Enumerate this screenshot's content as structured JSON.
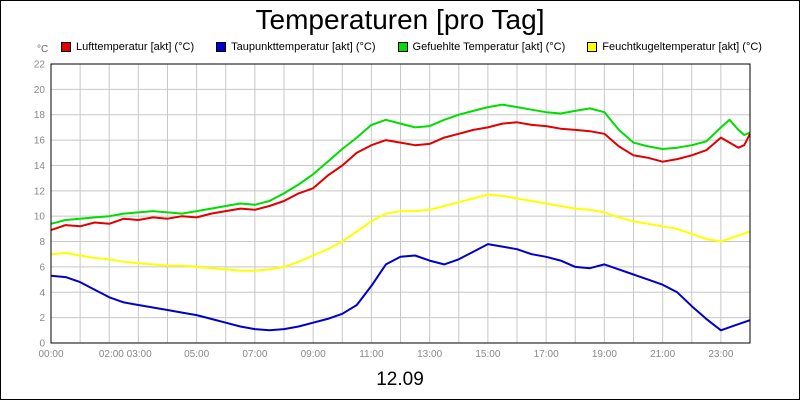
{
  "title": "Temperaturen [pro Tag]",
  "date_label": "12.09",
  "unit": "°C",
  "chart_data": {
    "type": "line",
    "title": "Temperaturen [pro Tag]",
    "xlabel": "12.09",
    "ylabel": "°C",
    "xlim": [
      0,
      24
    ],
    "ylim": [
      0,
      22
    ],
    "grid": true,
    "legend_position": "top",
    "x_tick_labels": [
      "00:00",
      "02:00 03:00",
      "05:00",
      "07:00",
      "09:00",
      "11:00",
      "13:00",
      "15:00",
      "17:00",
      "19:00",
      "21:00",
      "23:00"
    ],
    "x_tick_values": [
      0,
      2.55,
      5,
      7,
      9,
      11,
      13,
      15,
      17,
      19,
      21,
      23
    ],
    "y_tick_labels": [
      "0",
      "2",
      "4",
      "6",
      "8",
      "10",
      "12",
      "14",
      "16",
      "18",
      "20",
      "22"
    ],
    "y_tick_values": [
      0,
      2,
      4,
      6,
      8,
      10,
      12,
      14,
      16,
      18,
      20,
      22
    ],
    "series": [
      {
        "name": "Lufttemperatur [akt] (°C)",
        "color": "#e00000",
        "points": [
          [
            0,
            8.9
          ],
          [
            0.5,
            9.3
          ],
          [
            1,
            9.2
          ],
          [
            1.5,
            9.5
          ],
          [
            2,
            9.4
          ],
          [
            2.5,
            9.8
          ],
          [
            3,
            9.7
          ],
          [
            3.5,
            9.9
          ],
          [
            4,
            9.8
          ],
          [
            4.5,
            10.0
          ],
          [
            5,
            9.9
          ],
          [
            5.5,
            10.2
          ],
          [
            6,
            10.4
          ],
          [
            6.5,
            10.6
          ],
          [
            7,
            10.5
          ],
          [
            7.5,
            10.8
          ],
          [
            8,
            11.2
          ],
          [
            8.5,
            11.8
          ],
          [
            9,
            12.2
          ],
          [
            9.5,
            13.2
          ],
          [
            10,
            14.0
          ],
          [
            10.5,
            15.0
          ],
          [
            11,
            15.6
          ],
          [
            11.5,
            16.0
          ],
          [
            12,
            15.8
          ],
          [
            12.5,
            15.6
          ],
          [
            13,
            15.7
          ],
          [
            13.5,
            16.2
          ],
          [
            14,
            16.5
          ],
          [
            14.5,
            16.8
          ],
          [
            15,
            17.0
          ],
          [
            15.5,
            17.3
          ],
          [
            16,
            17.4
          ],
          [
            16.5,
            17.2
          ],
          [
            17,
            17.1
          ],
          [
            17.5,
            16.9
          ],
          [
            18,
            16.8
          ],
          [
            18.5,
            16.7
          ],
          [
            19,
            16.5
          ],
          [
            19.5,
            15.5
          ],
          [
            20,
            14.8
          ],
          [
            20.5,
            14.6
          ],
          [
            21,
            14.3
          ],
          [
            21.5,
            14.5
          ],
          [
            22,
            14.8
          ],
          [
            22.5,
            15.2
          ],
          [
            23,
            16.2
          ],
          [
            23.3,
            15.8
          ],
          [
            23.6,
            15.4
          ],
          [
            23.8,
            15.6
          ],
          [
            24,
            16.5
          ]
        ]
      },
      {
        "name": "Taupunkttemperatur [akt] (°C)",
        "color": "#0000cc",
        "points": [
          [
            0,
            5.3
          ],
          [
            0.5,
            5.2
          ],
          [
            1,
            4.8
          ],
          [
            1.5,
            4.2
          ],
          [
            2,
            3.6
          ],
          [
            2.5,
            3.2
          ],
          [
            3,
            3.0
          ],
          [
            3.5,
            2.8
          ],
          [
            4,
            2.6
          ],
          [
            4.5,
            2.4
          ],
          [
            5,
            2.2
          ],
          [
            5.5,
            1.9
          ],
          [
            6,
            1.6
          ],
          [
            6.5,
            1.3
          ],
          [
            7,
            1.1
          ],
          [
            7.5,
            1.0
          ],
          [
            8,
            1.1
          ],
          [
            8.5,
            1.3
          ],
          [
            9,
            1.6
          ],
          [
            9.5,
            1.9
          ],
          [
            10,
            2.3
          ],
          [
            10.5,
            3.0
          ],
          [
            11,
            4.5
          ],
          [
            11.5,
            6.2
          ],
          [
            12,
            6.8
          ],
          [
            12.5,
            6.9
          ],
          [
            13,
            6.5
          ],
          [
            13.5,
            6.2
          ],
          [
            14,
            6.6
          ],
          [
            14.5,
            7.2
          ],
          [
            15,
            7.8
          ],
          [
            15.5,
            7.6
          ],
          [
            16,
            7.4
          ],
          [
            16.5,
            7.0
          ],
          [
            17,
            6.8
          ],
          [
            17.5,
            6.5
          ],
          [
            18,
            6.0
          ],
          [
            18.5,
            5.9
          ],
          [
            19,
            6.2
          ],
          [
            19.5,
            5.8
          ],
          [
            20,
            5.4
          ],
          [
            20.5,
            5.0
          ],
          [
            21,
            4.6
          ],
          [
            21.5,
            4.0
          ],
          [
            22,
            2.9
          ],
          [
            22.5,
            1.9
          ],
          [
            23,
            1.0
          ],
          [
            23.5,
            1.4
          ],
          [
            24,
            1.8
          ]
        ]
      },
      {
        "name": "Gefuehlte Temperatur [akt] (°C)",
        "color": "#00dd00",
        "points": [
          [
            0,
            9.4
          ],
          [
            0.5,
            9.7
          ],
          [
            1,
            9.8
          ],
          [
            1.5,
            9.9
          ],
          [
            2,
            10.0
          ],
          [
            2.5,
            10.2
          ],
          [
            3,
            10.3
          ],
          [
            3.5,
            10.4
          ],
          [
            4,
            10.3
          ],
          [
            4.5,
            10.2
          ],
          [
            5,
            10.4
          ],
          [
            5.5,
            10.6
          ],
          [
            6,
            10.8
          ],
          [
            6.5,
            11.0
          ],
          [
            7,
            10.9
          ],
          [
            7.5,
            11.2
          ],
          [
            8,
            11.8
          ],
          [
            8.5,
            12.5
          ],
          [
            9,
            13.3
          ],
          [
            9.5,
            14.3
          ],
          [
            10,
            15.3
          ],
          [
            10.5,
            16.2
          ],
          [
            11,
            17.2
          ],
          [
            11.5,
            17.6
          ],
          [
            12,
            17.3
          ],
          [
            12.5,
            17.0
          ],
          [
            13,
            17.1
          ],
          [
            13.5,
            17.6
          ],
          [
            14,
            18.0
          ],
          [
            14.5,
            18.3
          ],
          [
            15,
            18.6
          ],
          [
            15.5,
            18.8
          ],
          [
            16,
            18.6
          ],
          [
            16.5,
            18.4
          ],
          [
            17,
            18.2
          ],
          [
            17.5,
            18.1
          ],
          [
            18,
            18.3
          ],
          [
            18.5,
            18.5
          ],
          [
            19,
            18.2
          ],
          [
            19.5,
            16.8
          ],
          [
            20,
            15.8
          ],
          [
            20.5,
            15.5
          ],
          [
            21,
            15.3
          ],
          [
            21.5,
            15.4
          ],
          [
            22,
            15.6
          ],
          [
            22.5,
            15.9
          ],
          [
            23,
            17.0
          ],
          [
            23.3,
            17.6
          ],
          [
            23.6,
            16.8
          ],
          [
            23.8,
            16.4
          ],
          [
            24,
            16.6
          ]
        ]
      },
      {
        "name": "Feuchtkugeltemperatur [akt] (°C)",
        "color": "#ffff00",
        "points": [
          [
            0,
            7.0
          ],
          [
            0.5,
            7.1
          ],
          [
            1,
            6.9
          ],
          [
            1.5,
            6.7
          ],
          [
            2,
            6.6
          ],
          [
            2.5,
            6.4
          ],
          [
            3,
            6.3
          ],
          [
            3.5,
            6.2
          ],
          [
            4,
            6.1
          ],
          [
            4.5,
            6.1
          ],
          [
            5,
            6.0
          ],
          [
            5.5,
            5.9
          ],
          [
            6,
            5.8
          ],
          [
            6.5,
            5.7
          ],
          [
            7,
            5.7
          ],
          [
            7.5,
            5.8
          ],
          [
            8,
            6.0
          ],
          [
            8.5,
            6.4
          ],
          [
            9,
            6.9
          ],
          [
            9.5,
            7.4
          ],
          [
            10,
            8.0
          ],
          [
            10.5,
            8.8
          ],
          [
            11,
            9.6
          ],
          [
            11.5,
            10.2
          ],
          [
            12,
            10.4
          ],
          [
            12.5,
            10.4
          ],
          [
            13,
            10.5
          ],
          [
            13.5,
            10.8
          ],
          [
            14,
            11.1
          ],
          [
            14.5,
            11.4
          ],
          [
            15,
            11.7
          ],
          [
            15.5,
            11.6
          ],
          [
            16,
            11.4
          ],
          [
            16.5,
            11.2
          ],
          [
            17,
            11.0
          ],
          [
            17.5,
            10.8
          ],
          [
            18,
            10.6
          ],
          [
            18.5,
            10.5
          ],
          [
            19,
            10.3
          ],
          [
            19.5,
            9.9
          ],
          [
            20,
            9.6
          ],
          [
            20.5,
            9.4
          ],
          [
            21,
            9.2
          ],
          [
            21.5,
            9.0
          ],
          [
            22,
            8.6
          ],
          [
            22.5,
            8.2
          ],
          [
            23,
            8.0
          ],
          [
            23.5,
            8.4
          ],
          [
            24,
            8.8
          ]
        ]
      }
    ]
  }
}
